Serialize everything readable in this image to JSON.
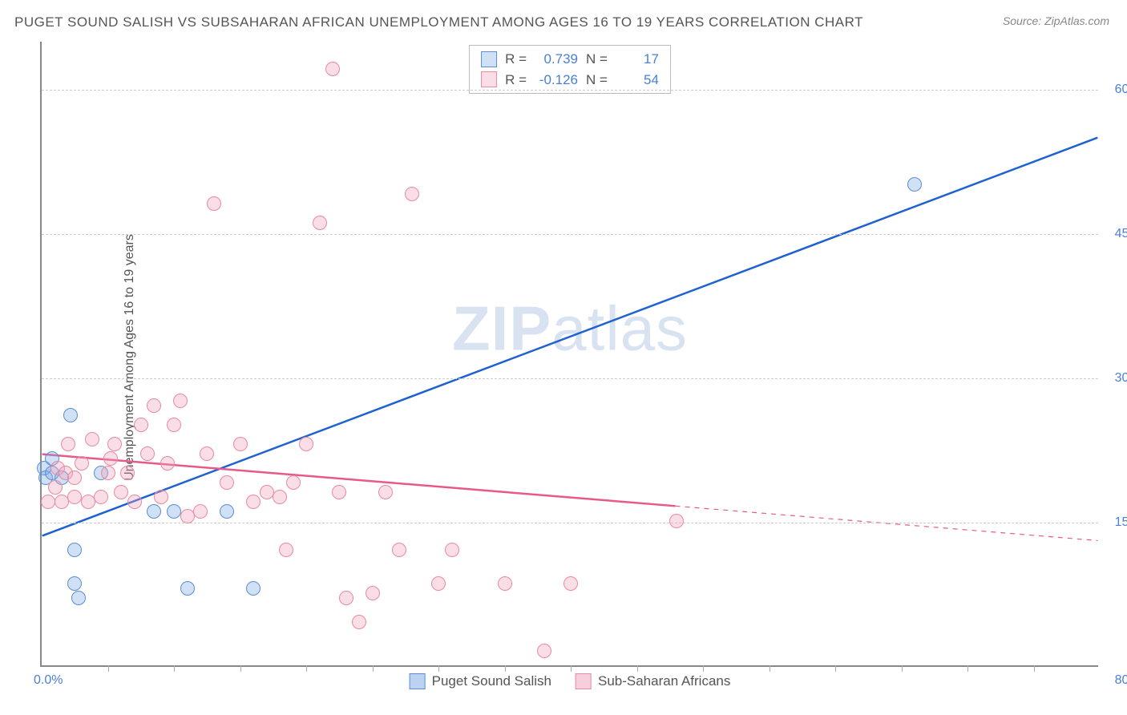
{
  "title": "PUGET SOUND SALISH VS SUBSAHARAN AFRICAN UNEMPLOYMENT AMONG AGES 16 TO 19 YEARS CORRELATION CHART",
  "source": "Source: ZipAtlas.com",
  "ylabel": "Unemployment Among Ages 16 to 19 years",
  "watermark": {
    "bold": "ZIP",
    "rest": "atlas"
  },
  "chart": {
    "type": "scatter",
    "xlim": [
      0,
      80
    ],
    "ylim": [
      0,
      65
    ],
    "x_ticks_label": {
      "min": "0.0%",
      "max": "80.0%"
    },
    "y_gridlines": [
      15,
      30,
      45,
      60
    ],
    "y_tick_labels": [
      "15.0%",
      "30.0%",
      "45.0%",
      "60.0%"
    ],
    "x_minor_ticks": [
      5,
      10,
      15,
      20,
      25,
      30,
      35,
      40,
      45,
      50,
      55,
      60,
      65,
      70,
      75
    ],
    "background_color": "#ffffff",
    "grid_color": "#cccccc",
    "axis_color": "#888888",
    "tick_label_color": "#4a7fd8",
    "marker_radius": 9,
    "marker_border_width": 1.5,
    "marker_fill_opacity": 0.35
  },
  "series": [
    {
      "name": "Puget Sound Salish",
      "color_border": "#5a8fd6",
      "color_fill": "rgba(120,165,225,0.35)",
      "line_color": "#1e62d0",
      "line_width": 2.5,
      "R": "0.739",
      "N": "17",
      "trend": {
        "x1": 0,
        "y1": 13.5,
        "x2": 80,
        "y2": 55,
        "solid_until_x": 80
      },
      "points": [
        [
          0.2,
          20.5
        ],
        [
          0.3,
          19.5
        ],
        [
          0.8,
          20
        ],
        [
          0.8,
          21.5
        ],
        [
          1.5,
          19.5
        ],
        [
          2.2,
          26
        ],
        [
          2.5,
          12
        ],
        [
          2.5,
          8.5
        ],
        [
          2.8,
          7
        ],
        [
          4.5,
          20
        ],
        [
          8.5,
          16
        ],
        [
          10,
          16
        ],
        [
          11,
          8
        ],
        [
          14,
          16
        ],
        [
          16,
          8
        ],
        [
          66,
          50
        ]
      ]
    },
    {
      "name": "Sub-Saharan Africans",
      "color_border": "#e88aa0",
      "color_fill": "rgba(240,160,185,0.35)",
      "line_color": "#e75a88",
      "line_width": 2.5,
      "R": "-0.126",
      "N": "54",
      "trend": {
        "x1": 0,
        "y1": 22,
        "x2": 80,
        "y2": 13,
        "solid_until_x": 48
      },
      "points": [
        [
          0.5,
          17
        ],
        [
          1,
          18.5
        ],
        [
          1.2,
          20.5
        ],
        [
          1.5,
          17
        ],
        [
          1.8,
          20
        ],
        [
          2,
          23
        ],
        [
          2.5,
          17.5
        ],
        [
          2.5,
          19.5
        ],
        [
          3,
          21
        ],
        [
          3.5,
          17
        ],
        [
          3.8,
          23.5
        ],
        [
          4.5,
          17.5
        ],
        [
          5,
          20
        ],
        [
          5.2,
          21.5
        ],
        [
          5.5,
          23
        ],
        [
          6,
          18
        ],
        [
          6.5,
          20
        ],
        [
          7,
          17
        ],
        [
          7.5,
          25
        ],
        [
          8,
          22
        ],
        [
          8.5,
          27
        ],
        [
          9,
          17.5
        ],
        [
          9.5,
          21
        ],
        [
          10,
          25
        ],
        [
          10.5,
          27.5
        ],
        [
          11,
          15.5
        ],
        [
          12,
          16
        ],
        [
          12.5,
          22
        ],
        [
          13,
          48
        ],
        [
          14,
          19
        ],
        [
          15,
          23
        ],
        [
          16,
          17
        ],
        [
          17,
          18
        ],
        [
          18,
          17.5
        ],
        [
          18.5,
          12
        ],
        [
          19,
          19
        ],
        [
          20,
          23
        ],
        [
          21,
          46
        ],
        [
          22,
          62
        ],
        [
          22.5,
          18
        ],
        [
          23,
          7
        ],
        [
          24,
          4.5
        ],
        [
          25,
          7.5
        ],
        [
          26,
          18
        ],
        [
          27,
          12
        ],
        [
          28,
          49
        ],
        [
          30,
          8.5
        ],
        [
          31,
          12
        ],
        [
          35,
          8.5
        ],
        [
          38,
          1.5
        ],
        [
          40,
          8.5
        ],
        [
          48,
          15
        ]
      ]
    }
  ],
  "legend_top_labels": {
    "R": "R =",
    "N": "N ="
  },
  "legend_bottom": [
    {
      "label": "Puget Sound Salish",
      "fill": "rgba(120,165,225,0.5)",
      "border": "#5a8fd6"
    },
    {
      "label": "Sub-Saharan Africans",
      "fill": "rgba(240,160,185,0.5)",
      "border": "#e88aa0"
    }
  ]
}
